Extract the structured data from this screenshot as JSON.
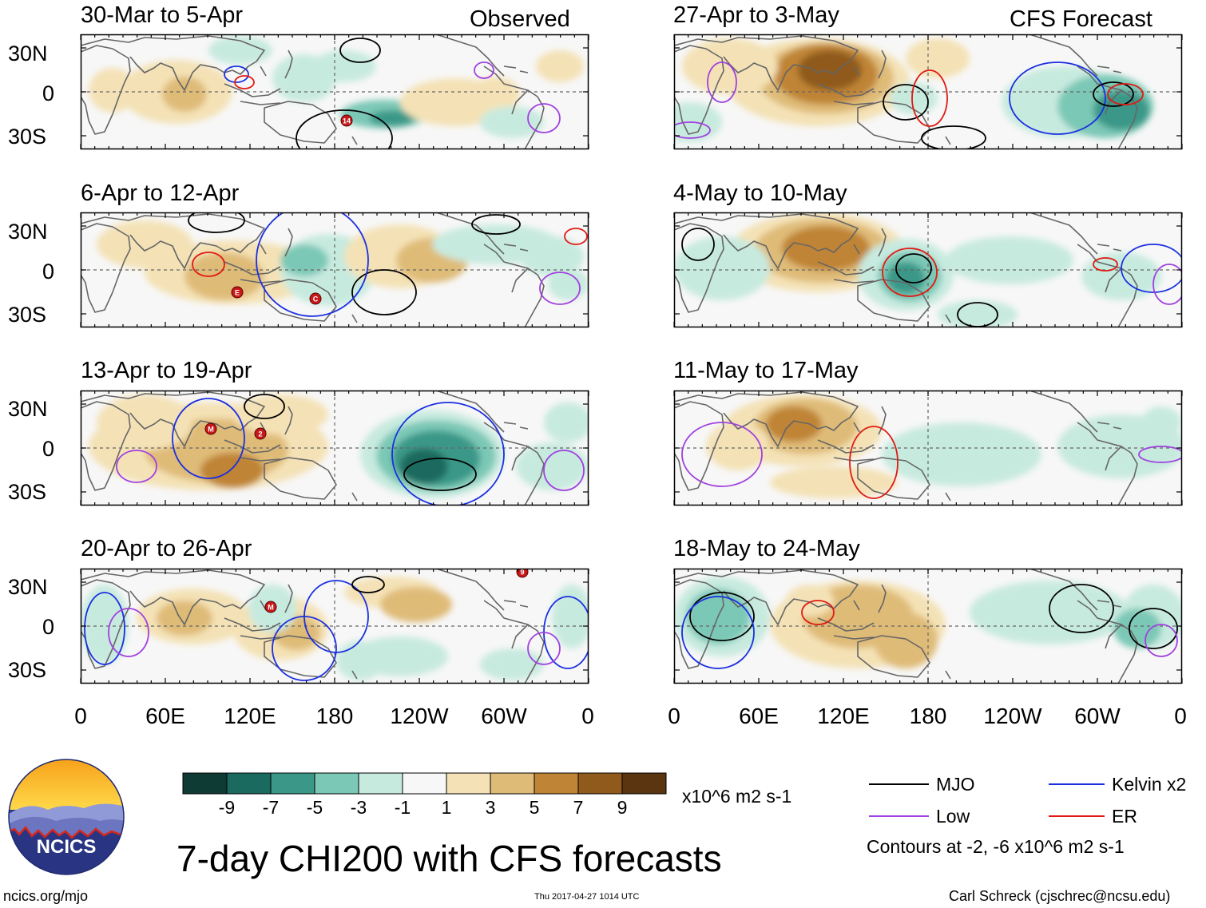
{
  "figure": {
    "title": "7-day CHI200 with CFS forecasts",
    "site": "ncics.org/mjo",
    "timestamp": "Thu 2017-04-27 1014 UTC",
    "author": "Carl Schreck (cjschrec@ncsu.edu)",
    "logo_text": "NCICS"
  },
  "tags": {
    "observed": "Observed",
    "forecast": "CFS Forecast"
  },
  "y_labels": [
    "30N",
    "0",
    "30S"
  ],
  "x_labels": [
    "0",
    "60E",
    "120E",
    "180",
    "120W",
    "60W",
    "0"
  ],
  "panels": [
    {
      "title": "30-Mar to 5-Apr"
    },
    {
      "title": "27-Apr to 3-May"
    },
    {
      "title": "6-Apr to 12-Apr"
    },
    {
      "title": "4-May to 10-May"
    },
    {
      "title": "13-Apr to 19-Apr"
    },
    {
      "title": "11-May to 17-May"
    },
    {
      "title": "20-Apr to 26-Apr"
    },
    {
      "title": "18-May to 24-May"
    }
  ],
  "colorbar": {
    "labels": [
      "-9",
      "-7",
      "-5",
      "-3",
      "-1",
      "1",
      "3",
      "5",
      "7",
      "9"
    ],
    "colors": [
      "#0f3b35",
      "#1b6a5f",
      "#3b9888",
      "#7cc8b6",
      "#c7eadf",
      "#f7f7f7",
      "#f4e2b6",
      "#dfbb78",
      "#bf8436",
      "#8f5a1c",
      "#5a3510"
    ],
    "units": "x10^6 m2 s-1"
  },
  "legend": {
    "items": [
      {
        "label": "MJO",
        "color": "#000000"
      },
      {
        "label": "Kelvin x2",
        "color": "#1a2fe0"
      },
      {
        "label": "Low",
        "color": "#a040e0"
      },
      {
        "label": "ER",
        "color": "#e01a12"
      }
    ],
    "note": "Contours at -2, -6 x10^6 m2 s-1"
  },
  "storm_markers": [
    "14",
    "E",
    "C",
    "M",
    "2",
    "M",
    "9"
  ],
  "palette": {
    "land_outline": "#666666",
    "zero_line": "#666666"
  }
}
